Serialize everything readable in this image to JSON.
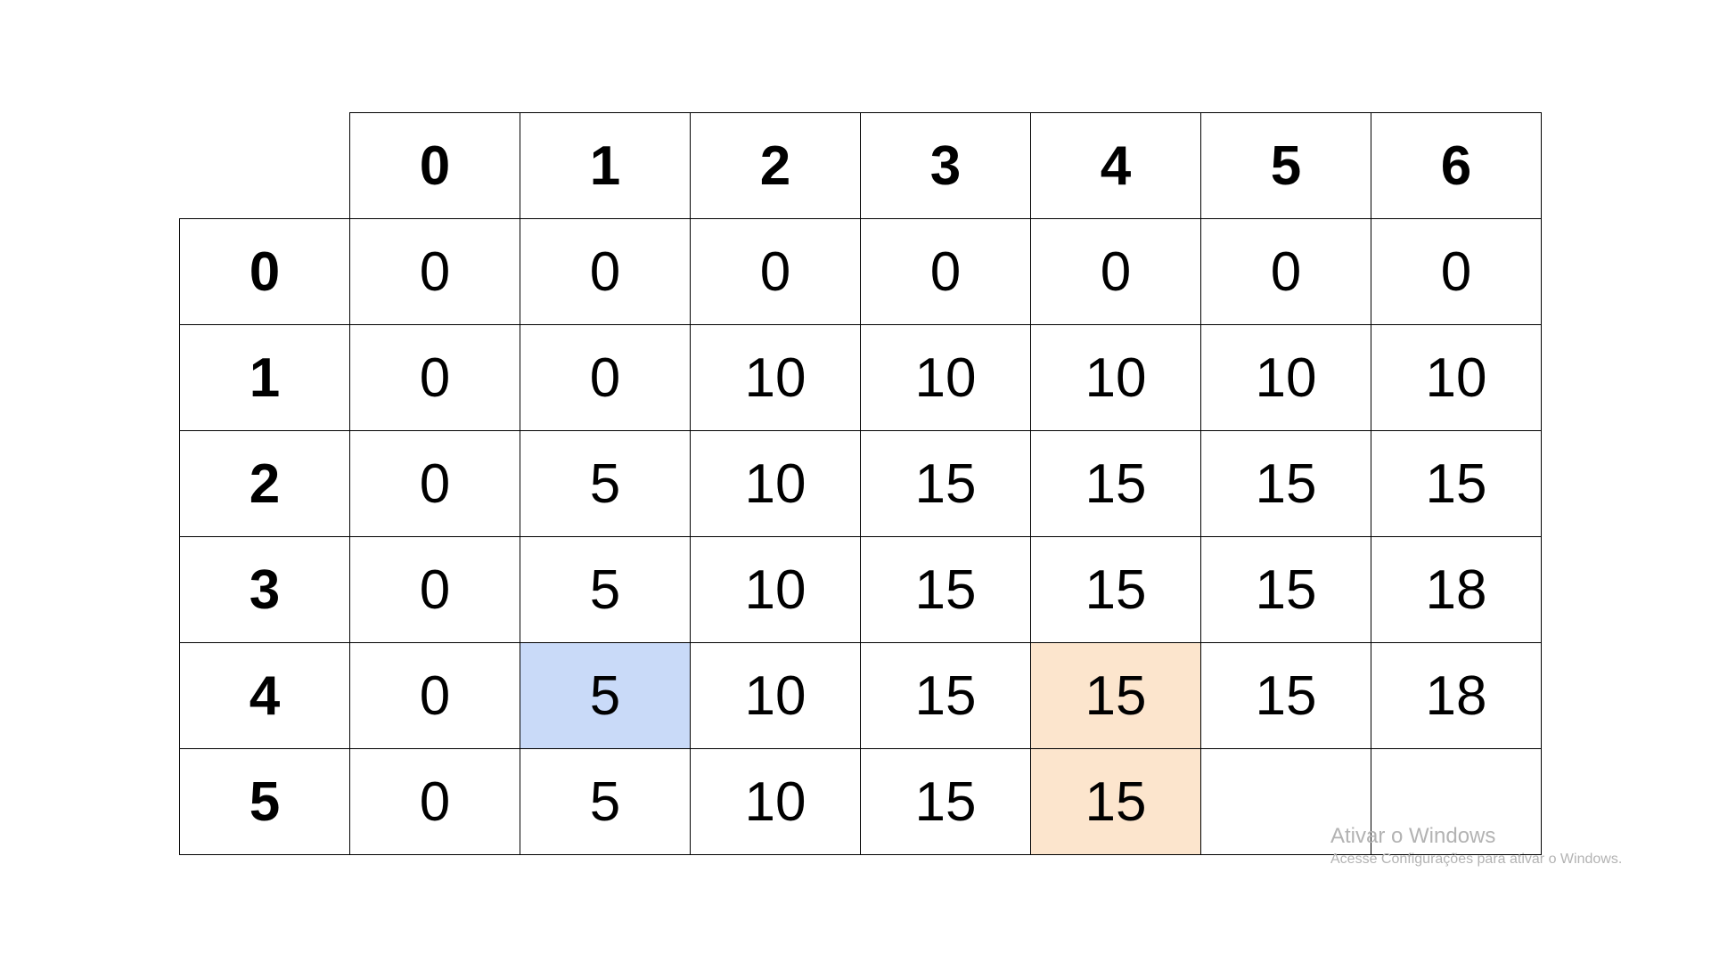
{
  "table": {
    "column_headers": [
      "0",
      "1",
      "2",
      "3",
      "4",
      "5",
      "6"
    ],
    "rows": [
      {
        "label": "0",
        "cells": [
          "0",
          "0",
          "0",
          "0",
          "0",
          "0",
          "0"
        ]
      },
      {
        "label": "1",
        "cells": [
          "0",
          "0",
          "10",
          "10",
          "10",
          "10",
          "10"
        ]
      },
      {
        "label": "2",
        "cells": [
          "0",
          "5",
          "10",
          "15",
          "15",
          "15",
          "15"
        ]
      },
      {
        "label": "3",
        "cells": [
          "0",
          "5",
          "10",
          "15",
          "15",
          "15",
          "18"
        ]
      },
      {
        "label": "4",
        "cells": [
          "0",
          "5",
          "10",
          "15",
          "15",
          "15",
          "18"
        ]
      },
      {
        "label": "5",
        "cells": [
          "0",
          "5",
          "10",
          "15",
          "15",
          "",
          ""
        ]
      }
    ],
    "highlight_colors": {
      "blue": "#c9daf8",
      "orange": "#fce5cd"
    }
  },
  "watermark": {
    "title": "Ativar o Windows",
    "subtitle": "Acesse Configurações para ativar o Windows."
  }
}
